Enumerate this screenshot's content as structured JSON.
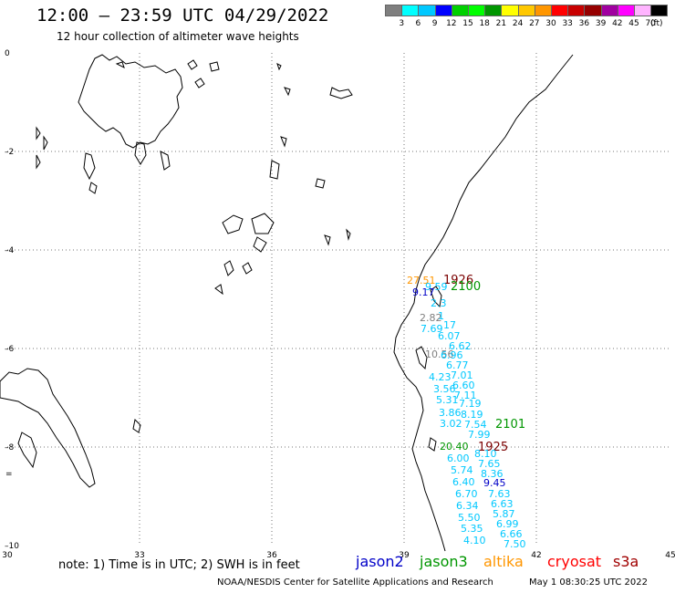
{
  "title": "12:00 – 23:59 UTC 04/29/2022",
  "subtitle": "12 hour collection of altimeter wave heights",
  "scale": {
    "unit": "(ft)",
    "bins": [
      {
        "label": "3",
        "color": "#7f7f7f"
      },
      {
        "label": "6",
        "color": "#00ffff"
      },
      {
        "label": "9",
        "color": "#00c8ff"
      },
      {
        "label": "12",
        "color": "#0000ff"
      },
      {
        "label": "15",
        "color": "#00d000"
      },
      {
        "label": "18",
        "color": "#00ff00"
      },
      {
        "label": "21",
        "color": "#009600"
      },
      {
        "label": "24",
        "color": "#ffff00"
      },
      {
        "label": "27",
        "color": "#ffc800"
      },
      {
        "label": "30",
        "color": "#ff9600"
      },
      {
        "label": "33",
        "color": "#ff0000"
      },
      {
        "label": "36",
        "color": "#c80000"
      },
      {
        "label": "39",
        "color": "#960000"
      },
      {
        "label": "42",
        "color": "#a000a0"
      },
      {
        "label": "45",
        "color": "#ff00ff"
      },
      {
        "label": "70",
        "color": "#ffb4ff"
      },
      {
        "label": "",
        "color": "#000000"
      }
    ]
  },
  "axes": {
    "lat_labels": [
      "0",
      "–2",
      "–4",
      "–6",
      "–8",
      "–10"
    ],
    "lon_labels": [
      "30",
      "33",
      "36",
      "39",
      "42",
      "45"
    ]
  },
  "track_labels": [
    {
      "text": "1926",
      "color": "#7a0000"
    },
    {
      "text": "2100",
      "color": "#009600"
    },
    {
      "text": "2101",
      "color": "#009600"
    },
    {
      "text": "1925",
      "color": "#7a0000"
    }
  ],
  "wave_heights": [
    {
      "text": "27.51",
      "color": "#ff9600"
    },
    {
      "text": "9.59",
      "color": "#00c8ff"
    },
    {
      "text": "9.17",
      "color": "#0000c8"
    },
    {
      "text": "2.3",
      "color": "#00c8ff"
    },
    {
      "text": "2.82",
      "color": "#7f7f7f"
    },
    {
      "text": "1",
      "color": "#00c8ff"
    },
    {
      "text": "7.69",
      "color": "#00c8ff"
    },
    {
      "text": "17",
      "color": "#00c8ff"
    },
    {
      "text": "6.07",
      "color": "#00c8ff"
    },
    {
      "text": "6.62",
      "color": "#00c8ff"
    },
    {
      "text": "10.56",
      "color": "#7f7f7f"
    },
    {
      "text": "6.96",
      "color": "#00c8ff"
    },
    {
      "text": "6.77",
      "color": "#00c8ff"
    },
    {
      "text": "7.01",
      "color": "#00c8ff"
    },
    {
      "text": "4.23",
      "color": "#00c8ff"
    },
    {
      "text": "6.60",
      "color": "#00c8ff"
    },
    {
      "text": "3.56",
      "color": "#00c8ff"
    },
    {
      "text": "7.11",
      "color": "#00c8ff"
    },
    {
      "text": "5.31",
      "color": "#00c8ff"
    },
    {
      "text": "7.19",
      "color": "#00c8ff"
    },
    {
      "text": "3.86",
      "color": "#00c8ff"
    },
    {
      "text": "8.19",
      "color": "#00c8ff"
    },
    {
      "text": "3.02",
      "color": "#00c8ff"
    },
    {
      "text": "7.54",
      "color": "#00c8ff"
    },
    {
      "text": "7.99",
      "color": "#00c8ff"
    },
    {
      "text": "20.40",
      "color": "#009600"
    },
    {
      "text": "8.10",
      "color": "#00c8ff"
    },
    {
      "text": "6.00",
      "color": "#00c8ff"
    },
    {
      "text": "7.65",
      "color": "#00c8ff"
    },
    {
      "text": "5.74",
      "color": "#00c8ff"
    },
    {
      "text": "8.36",
      "color": "#00c8ff"
    },
    {
      "text": "6.40",
      "color": "#00c8ff"
    },
    {
      "text": "9.45",
      "color": "#0000c8"
    },
    {
      "text": "6.70",
      "color": "#00c8ff"
    },
    {
      "text": "7.63",
      "color": "#00c8ff"
    },
    {
      "text": "6.34",
      "color": "#00c8ff"
    },
    {
      "text": "6.63",
      "color": "#00c8ff"
    },
    {
      "text": "5.87",
      "color": "#00c8ff"
    },
    {
      "text": "5.50",
      "color": "#00c8ff"
    },
    {
      "text": "6.99",
      "color": "#00c8ff"
    },
    {
      "text": "5.35",
      "color": "#00c8ff"
    },
    {
      "text": "6.66",
      "color": "#00c8ff"
    },
    {
      "text": "4.10",
      "color": "#00c8ff"
    },
    {
      "text": "7.50",
      "color": "#00c8ff"
    }
  ],
  "note": "note:  1) Time is in UTC; 2) SWH is in feet",
  "satellites": [
    {
      "name": "jason2",
      "color": "#0000c8"
    },
    {
      "name": "jason3",
      "color": "#009600"
    },
    {
      "name": "altika",
      "color": "#ff9600"
    },
    {
      "name": "cryosat",
      "color": "#ff0000"
    },
    {
      "name": "s3a",
      "color": "#a00000"
    }
  ],
  "footer": "NOAA/NESDIS Center for Satellite Applications and Research",
  "footer_time": "May  1 08:30:25 UTC 2022"
}
